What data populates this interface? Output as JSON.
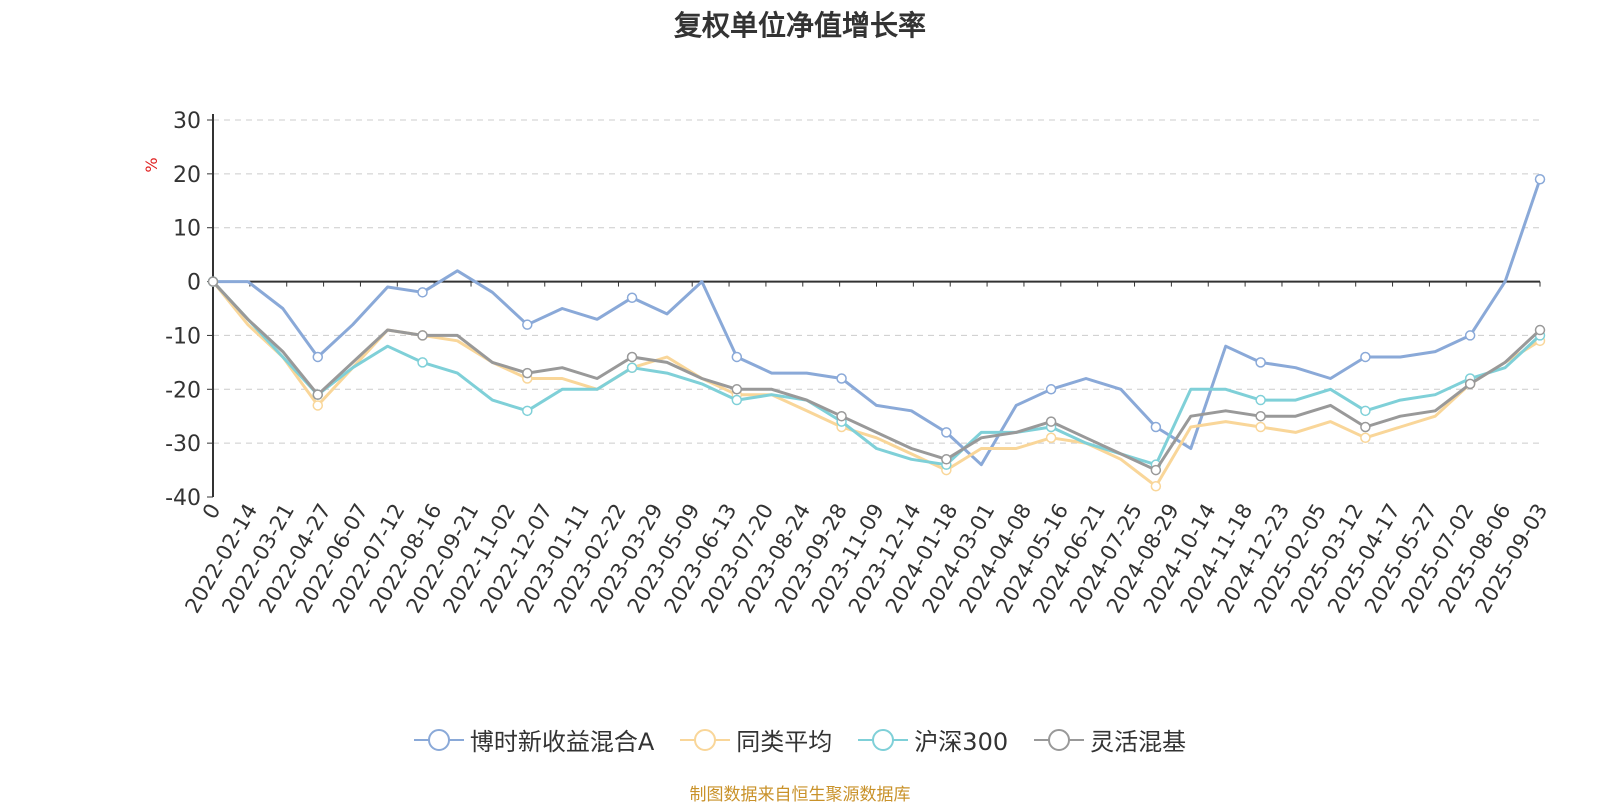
{
  "chart_data": {
    "type": "line",
    "title": "复权单位净值增长率",
    "ylabel": "%",
    "ylim": [
      -40,
      30
    ],
    "yticks": [
      "30",
      "20",
      "10",
      "0",
      "-10",
      "-20",
      "-30",
      "-40"
    ],
    "x_tick_labels": [
      "0",
      "2022-02-14",
      "2022-03-21",
      "2022-04-27",
      "2022-06-07",
      "2022-07-12",
      "2022-08-16",
      "2022-09-21",
      "2022-11-02",
      "2022-12-07",
      "2023-01-11",
      "2023-02-22",
      "2023-03-29",
      "2023-05-09",
      "2023-06-13",
      "2023-07-20",
      "2023-08-24",
      "2023-09-28",
      "2023-11-09",
      "2023-12-14",
      "2024-01-18",
      "2024-03-01",
      "2024-04-08",
      "2024-05-16",
      "2024-06-21",
      "2024-07-25",
      "2024-08-29",
      "2024-10-14",
      "2024-11-18",
      "2024-12-23",
      "2025-02-05",
      "2025-03-12",
      "2025-04-17",
      "2025-05-27",
      "2025-07-02",
      "2025-08-06",
      "2025-09-03"
    ],
    "grid": "horizontal-dashed",
    "legend_position": "bottom",
    "series": [
      {
        "name": "博时新收益混合A",
        "color": "#8aa9d8",
        "values": [
          0,
          0,
          -5,
          -14,
          -8,
          -1,
          -2,
          2,
          -2,
          -8,
          -5,
          -7,
          -3,
          -6,
          0,
          -14,
          -17,
          -17,
          -18,
          -23,
          -24,
          -28,
          -34,
          -23,
          -20,
          -18,
          -20,
          -27,
          -31,
          -12,
          -15,
          -16,
          -18,
          -14,
          -14,
          -13,
          -10,
          0,
          19
        ]
      },
      {
        "name": "同类平均",
        "color": "#f9d699",
        "values": [
          0,
          -8,
          -14,
          -23,
          -16,
          -9,
          -10,
          -11,
          -15,
          -18,
          -18,
          -20,
          -16,
          -14,
          -18,
          -21,
          -21,
          -24,
          -27,
          -29,
          -32,
          -35,
          -31,
          -31,
          -29,
          -30,
          -33,
          -38,
          -27,
          -26,
          -27,
          -28,
          -26,
          -29,
          -27,
          -25,
          -19,
          -15,
          -11
        ]
      },
      {
        "name": "沪深300",
        "color": "#7fd0d8",
        "values": [
          0,
          -7,
          -14,
          -21,
          -16,
          -12,
          -15,
          -17,
          -22,
          -24,
          -20,
          -20,
          -16,
          -17,
          -19,
          -22,
          -21,
          -22,
          -26,
          -31,
          -33,
          -34,
          -28,
          -28,
          -27,
          -30,
          -32,
          -34,
          -20,
          -20,
          -22,
          -22,
          -20,
          -24,
          -22,
          -21,
          -18,
          -16,
          -10
        ]
      },
      {
        "name": "灵活混基",
        "color": "#999999",
        "values": [
          0,
          -7,
          -13,
          -21,
          -15,
          -9,
          -10,
          -10,
          -15,
          -17,
          -16,
          -18,
          -14,
          -15,
          -18,
          -20,
          -20,
          -22,
          -25,
          -28,
          -31,
          -33,
          -29,
          -28,
          -26,
          -29,
          -32,
          -35,
          -25,
          -24,
          -25,
          -25,
          -23,
          -27,
          -25,
          -24,
          -19,
          -15,
          -9
        ]
      }
    ]
  },
  "legend": [
    {
      "label": "博时新收益混合A",
      "color": "#8aa9d8"
    },
    {
      "label": "同类平均",
      "color": "#f9d699"
    },
    {
      "label": "沪深300",
      "color": "#7fd0d8"
    },
    {
      "label": "灵活混基",
      "color": "#999999"
    }
  ],
  "source": "制图数据来自恒生聚源数据库"
}
